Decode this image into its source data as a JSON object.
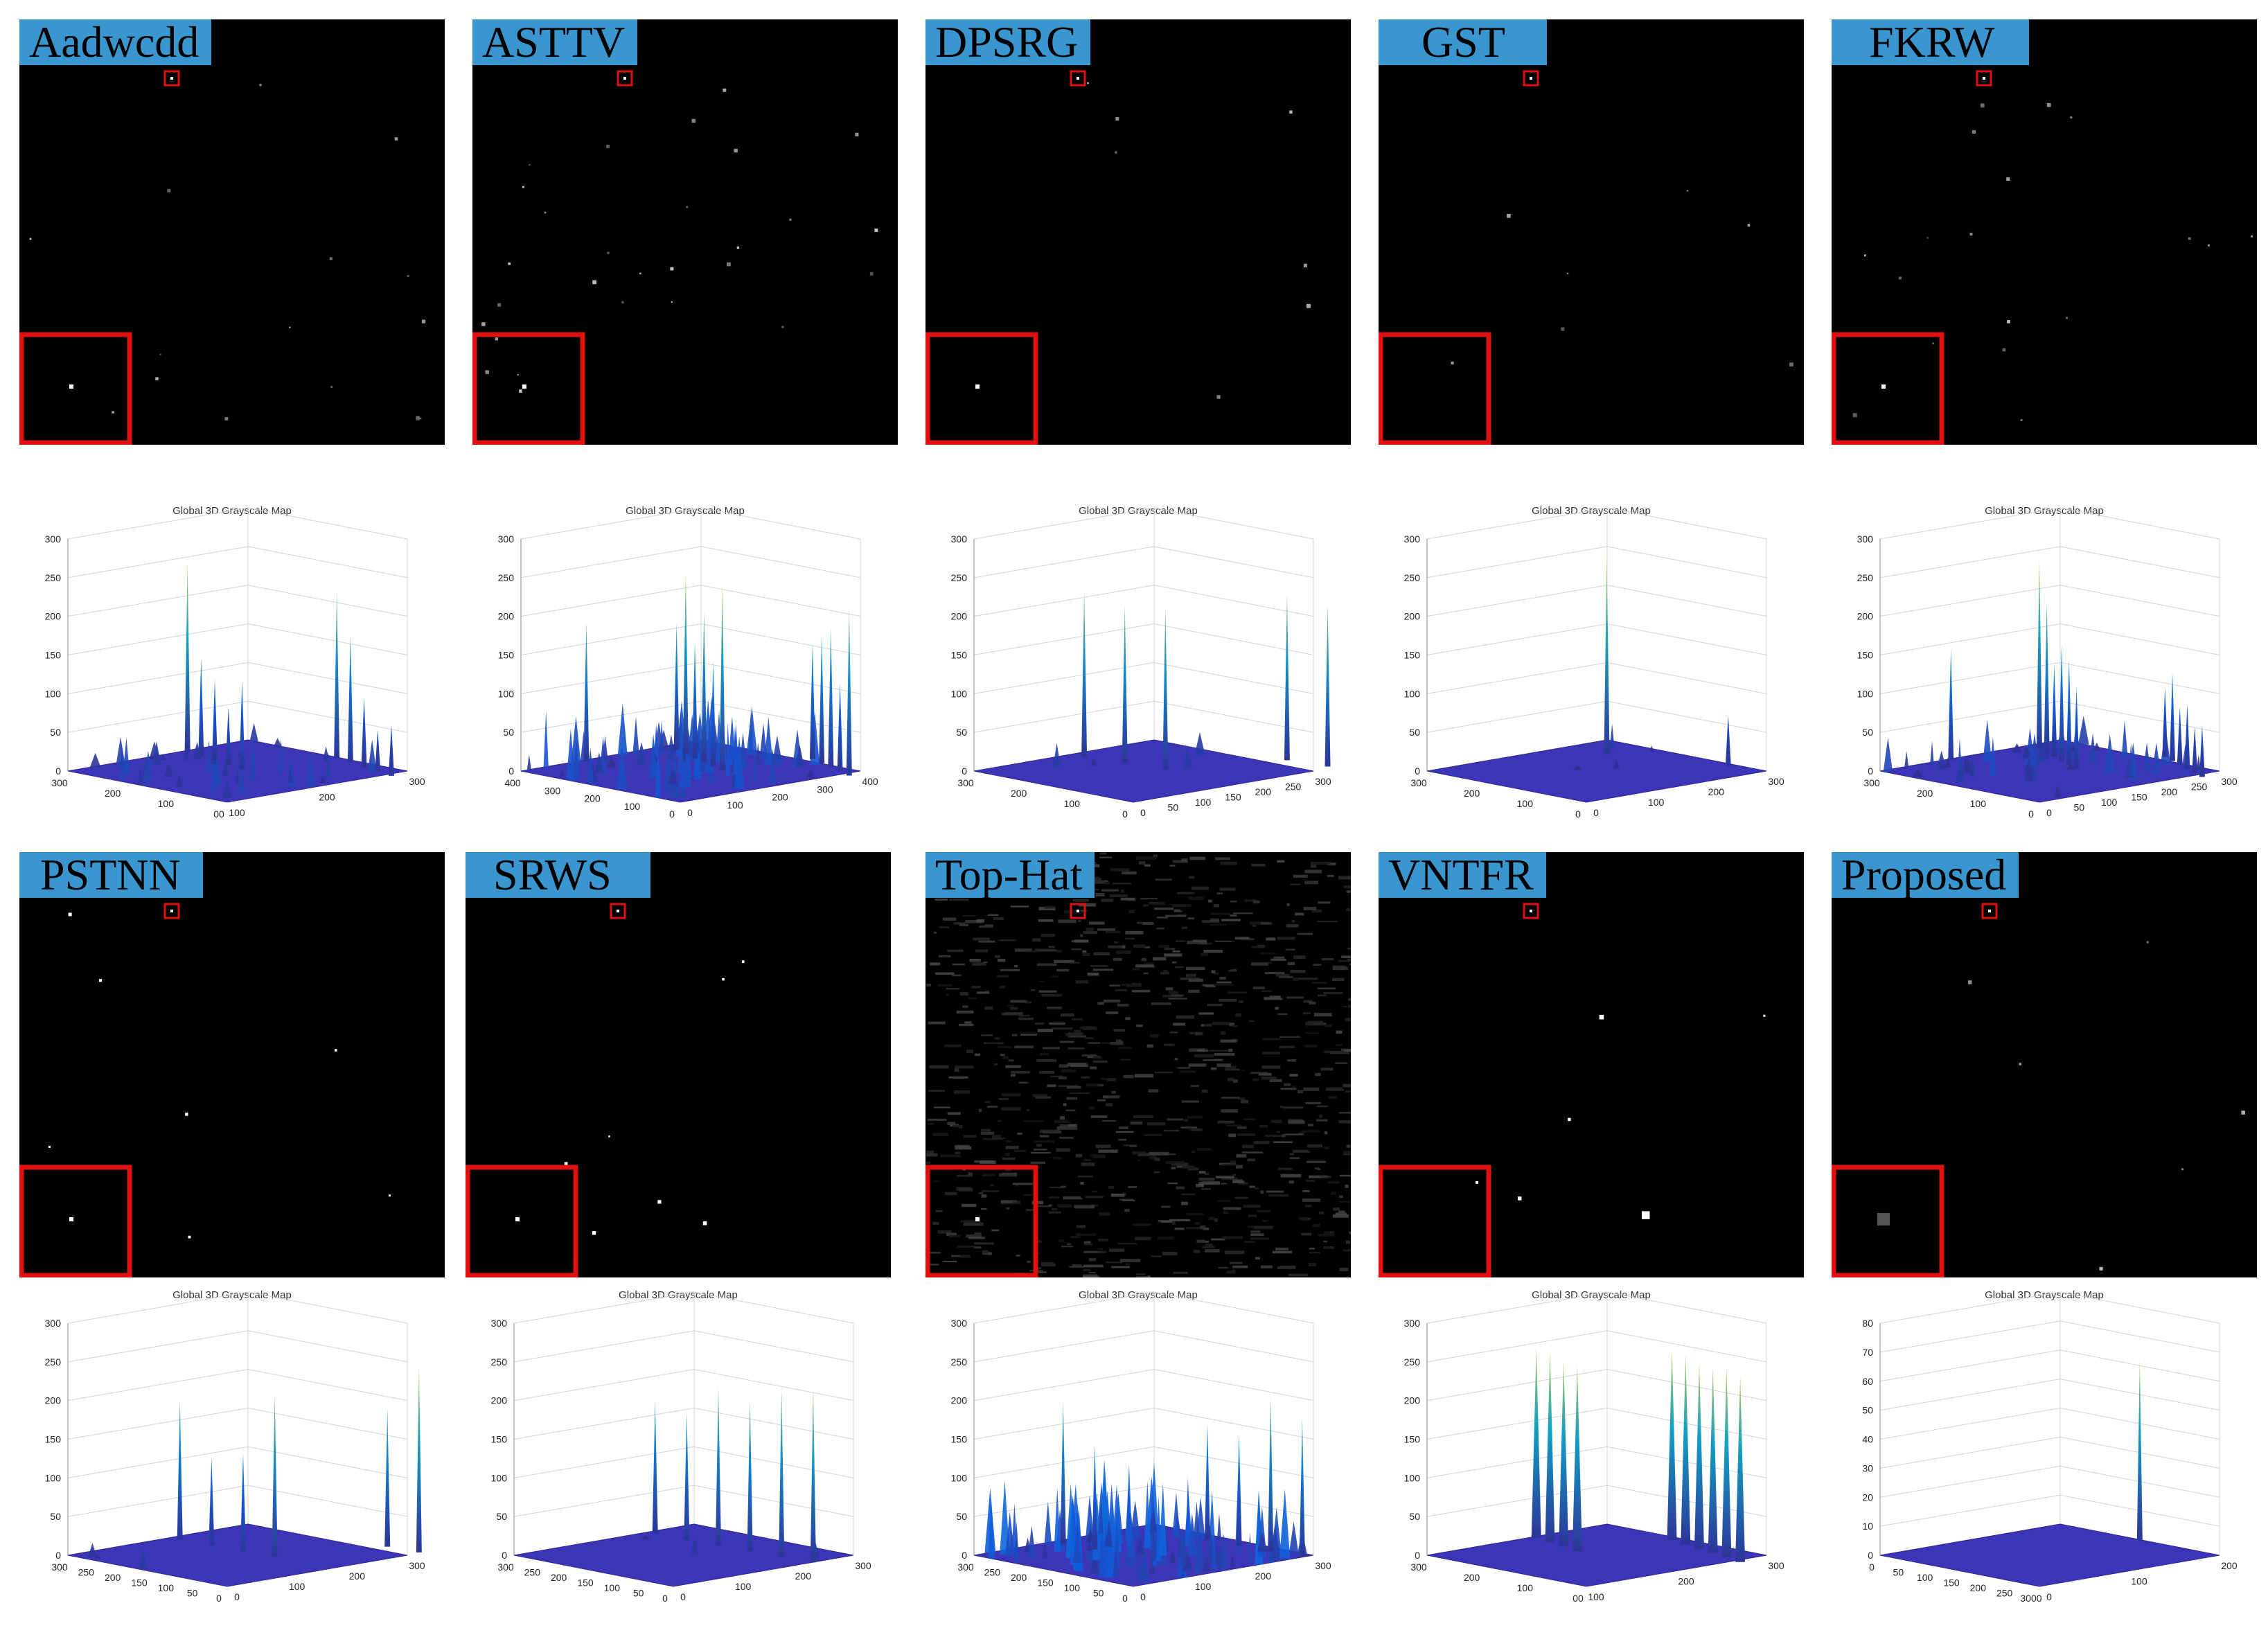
{
  "plot_title": "Global 3D Grayscale Map",
  "panels": [
    {
      "method": "Aadwcdd",
      "z_ticks": [
        "0",
        "50",
        "100",
        "150",
        "200",
        "250",
        "300"
      ],
      "left_ticks": [
        "300",
        "200",
        "100",
        "00"
      ],
      "right_ticks": [
        "100",
        "200",
        "300"
      ],
      "peaks": [
        0.82,
        0.42,
        0.35,
        0.25,
        0.38,
        0.72,
        0.55,
        0.3,
        0.18,
        0.22
      ],
      "noise": 0.25,
      "colormap": "parula"
    },
    {
      "method": "ASTTV",
      "z_ticks": [
        "0",
        "50",
        "100",
        "150",
        "200",
        "250",
        "300"
      ],
      "left_ticks": [
        "400",
        "300",
        "200",
        "100",
        "0"
      ],
      "right_ticks": [
        "0",
        "100",
        "200",
        "300",
        "400"
      ],
      "peaks": [
        0.6,
        0.55,
        0.78,
        0.5,
        0.65,
        0.45,
        0.8,
        0.5,
        0.55,
        0.6,
        0.38,
        0.72
      ],
      "noise": 0.55,
      "colormap": "parula"
    },
    {
      "method": "DPSRG",
      "z_ticks": [
        "0",
        "50",
        "100",
        "150",
        "200",
        "250",
        "300"
      ],
      "left_ticks": [
        "300",
        "200",
        "100",
        "0"
      ],
      "right_ticks": [
        "0",
        "50",
        "100",
        "150",
        "200",
        "250",
        "300"
      ],
      "peaks": [
        0.72,
        0.68,
        0.7,
        0.72,
        0.7
      ],
      "noise": 0.03,
      "colormap": "parula"
    },
    {
      "method": "GST",
      "z_ticks": [
        "0",
        "50",
        "100",
        "150",
        "200",
        "250",
        "300"
      ],
      "left_ticks": [
        "300",
        "200",
        "100",
        "0"
      ],
      "right_ticks": [
        "0",
        "100",
        "200",
        "300"
      ],
      "peaks": [
        0.85,
        0.22
      ],
      "noise": 0.03,
      "colormap": "parula"
    },
    {
      "method": "FKRW",
      "z_ticks": [
        "0",
        "50",
        "100",
        "150",
        "200",
        "250",
        "300"
      ],
      "left_ticks": [
        "300",
        "200",
        "100",
        "0"
      ],
      "right_ticks": [
        "0",
        "50",
        "100",
        "150",
        "200",
        "250",
        "300"
      ],
      "peaks": [
        0.48,
        0.82,
        0.65,
        0.4,
        0.5,
        0.45,
        0.35,
        0.3,
        0.38,
        0.25,
        0.28,
        0.2,
        0.22
      ],
      "noise": 0.3,
      "colormap": "parula"
    },
    {
      "method": "PSTNN",
      "z_ticks": [
        "0",
        "50",
        "100",
        "150",
        "200",
        "250",
        "300"
      ],
      "left_ticks": [
        "300",
        "250",
        "200",
        "150",
        "100",
        "50",
        "0"
      ],
      "right_ticks": [
        "0",
        "100",
        "200",
        "300"
      ],
      "peaks": [
        0.6,
        0.38,
        0.42,
        0.7,
        0.6,
        0.8
      ],
      "noise": 0.02,
      "colormap": "parula"
    },
    {
      "method": "SRWS",
      "z_ticks": [
        "0",
        "50",
        "100",
        "150",
        "200",
        "250",
        "300"
      ],
      "left_ticks": [
        "300",
        "250",
        "200",
        "150",
        "100",
        "50",
        "0"
      ],
      "right_ticks": [
        "0",
        "100",
        "200",
        "300"
      ],
      "peaks": [
        0.58,
        0.55,
        0.68,
        0.65,
        0.72,
        0.75
      ],
      "noise": 0.02,
      "colormap": "parula"
    },
    {
      "method": "Top-Hat",
      "z_ticks": [
        "0",
        "50",
        "100",
        "150",
        "200",
        "250",
        "300"
      ],
      "left_ticks": [
        "300",
        "250",
        "200",
        "150",
        "100",
        "50",
        "0"
      ],
      "right_ticks": [
        "0",
        "100",
        "200",
        "300"
      ],
      "peaks": [
        0.62,
        0.45,
        0.5,
        0.48,
        0.66,
        0.6
      ],
      "noise": 0.85,
      "colormap": "parula"
    },
    {
      "method": "VNTFR",
      "z_ticks": [
        "0",
        "50",
        "100",
        "150",
        "200",
        "250",
        "300"
      ],
      "left_ticks": [
        "300",
        "200",
        "100",
        "00"
      ],
      "right_ticks": [
        "100",
        "200",
        "300"
      ],
      "peaks": [
        0.82,
        0.82,
        0.8,
        0.8,
        0.82,
        0.82,
        0.8,
        0.8,
        0.82,
        0.8
      ],
      "noise": 0.0,
      "colormap": "parula"
    },
    {
      "method": "Proposed",
      "z_ticks": [
        "0",
        "10",
        "20",
        "30",
        "40",
        "50",
        "60",
        "70",
        "80"
      ],
      "left_ticks": [
        "0",
        "50",
        "100",
        "150",
        "200",
        "250",
        "3000"
      ],
      "right_ticks": [
        "0",
        "100",
        "200"
      ],
      "peaks": [
        0.78
      ],
      "noise": 0.0,
      "colormap": "parula"
    }
  ]
}
